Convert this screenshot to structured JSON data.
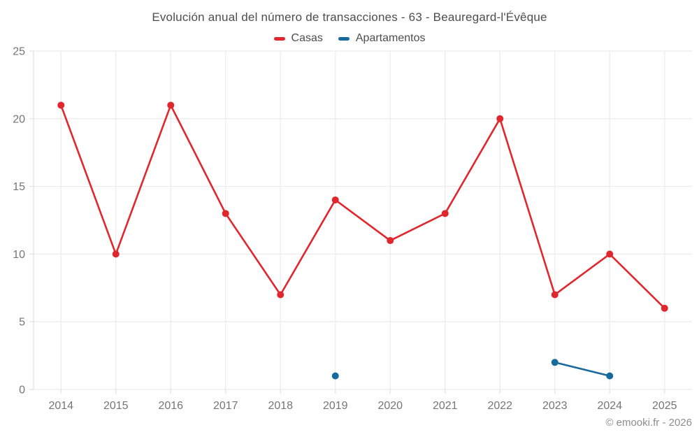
{
  "chart": {
    "title": "Evolución anual del número de transacciones - 63 - Beauregard-l'Évêque"
  },
  "chart_data": {
    "type": "line",
    "title": "Evolución anual del número de transacciones - 63 - Beauregard-l'Évêque",
    "categories": [
      "2014",
      "2015",
      "2016",
      "2017",
      "2018",
      "2019",
      "2020",
      "2021",
      "2022",
      "2023",
      "2024",
      "2025"
    ],
    "series": [
      {
        "name": "Casas",
        "color": "#e1272e",
        "values": [
          21,
          10,
          21,
          13,
          7,
          14,
          11,
          13,
          20,
          7,
          10,
          6
        ]
      },
      {
        "name": "Apartamentos",
        "color": "#17699e",
        "values": [
          null,
          null,
          null,
          null,
          null,
          1,
          null,
          null,
          null,
          2,
          1,
          null
        ]
      }
    ],
    "xlabel": "",
    "ylabel": "",
    "ylim": [
      0,
      25
    ],
    "yticks": [
      0,
      5,
      10,
      15,
      20,
      25
    ],
    "grid": true,
    "legend_position": "top"
  },
  "footer": {
    "copyright": "© emooki.fr - 2026"
  },
  "colors": {
    "grid": "#ececec",
    "axis": "#e3e3e3",
    "tick_label": "#757575",
    "title": "#4d4d4d",
    "footer": "#8c8c8c"
  }
}
